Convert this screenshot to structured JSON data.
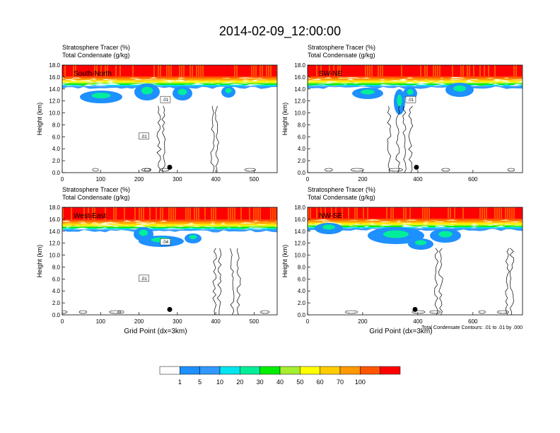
{
  "title": "2014-02-09_12:00:00",
  "colors": {
    "levels": [
      "#ffffff",
      "#1e90ff",
      "#3399ff",
      "#00e5ee",
      "#00ee99",
      "#00ee00",
      "#a6ee2f",
      "#ffff00",
      "#ffcc00",
      "#ff9900",
      "#ff5500",
      "#ff0000"
    ],
    "contour": "#000000"
  },
  "colorbar": {
    "labels": [
      "1",
      "5",
      "10",
      "20",
      "30",
      "40",
      "50",
      "60",
      "70",
      "100"
    ],
    "colors": [
      "#ffffff",
      "#1e90ff",
      "#3399ff",
      "#00e5ee",
      "#00ee99",
      "#00ee00",
      "#a6ee2f",
      "#ffff00",
      "#ffcc00",
      "#ff9900",
      "#ff5500",
      "#ff0000"
    ]
  },
  "chart_data": [
    {
      "type": "heatmap",
      "title": "South-North",
      "header_left": "Stratosphere Tracer   (%)",
      "header_left2": "Total Condensate   (g/kg)",
      "ylabel": "Height (km)",
      "xlabel": "",
      "xlim": [
        0,
        560
      ],
      "ylim": [
        0,
        18
      ],
      "xticks": [
        "0",
        "100",
        "200",
        "300",
        "400",
        "500"
      ],
      "yticks": [
        "0.0",
        "2.0",
        "4.0",
        "6.0",
        "8.0",
        "10.0",
        "12.0",
        "14.0",
        "16.0",
        "18.0"
      ],
      "tracer_top_km": 15.8,
      "contour_labels": [
        ".01",
        ".01"
      ],
      "marker": {
        "x": 280,
        "y": 0.9
      }
    },
    {
      "type": "heatmap",
      "title": "SW-NE",
      "header_left": "Stratosphere Tracer   (%)",
      "header_left2": "Total Condensate   (g/kg)",
      "ylabel": "Height (km)",
      "xlabel": "",
      "xlim": [
        0,
        780
      ],
      "ylim": [
        0,
        18
      ],
      "xticks": [
        "0",
        "200",
        "400",
        "600"
      ],
      "yticks": [
        "0.0",
        "2.0",
        "4.0",
        "6.0",
        "8.0",
        "10.0",
        "12.0",
        "14.0",
        "16.0",
        "18.0"
      ],
      "tracer_top_km": 15.8,
      "contour_labels": [
        ".01"
      ],
      "marker": {
        "x": 395,
        "y": 0.9
      }
    },
    {
      "type": "heatmap",
      "title": "West-East",
      "header_left": "Stratosphere Tracer   (%)",
      "header_left2": "Total Condensate   (g/kg)",
      "ylabel": "Height (km)",
      "xlabel": "Grid Point (dx=3km)",
      "xlim": [
        0,
        560
      ],
      "ylim": [
        0,
        18
      ],
      "xticks": [
        "0",
        "100",
        "200",
        "300",
        "400",
        "500"
      ],
      "yticks": [
        "0.0",
        "2.0",
        "4.0",
        "6.0",
        "8.0",
        "10.0",
        "12.0",
        "14.0",
        "16.0",
        "18.0"
      ],
      "tracer_top_km": 15.6,
      "contour_labels": [
        ".04",
        ".01"
      ],
      "marker": {
        "x": 280,
        "y": 0.9
      }
    },
    {
      "type": "heatmap",
      "title": "NW-SE",
      "header_left": "Stratosphere Tracer   (%)",
      "header_left2": "Total Condensate   (g/kg)",
      "ylabel": "Height (km)",
      "xlabel": "Grid Point (dx=3km)",
      "footnote": "Total Condensate Contours: .01 to .01 by .000",
      "xlim": [
        0,
        780
      ],
      "ylim": [
        0,
        18
      ],
      "xticks": [
        "0",
        "200",
        "400",
        "600"
      ],
      "yticks": [
        "0.0",
        "2.0",
        "4.0",
        "6.0",
        "8.0",
        "10.0",
        "12.0",
        "14.0",
        "16.0",
        "18.0"
      ],
      "tracer_top_km": 15.8,
      "contour_labels": [],
      "marker": {
        "x": 390,
        "y": 0.9
      }
    }
  ]
}
